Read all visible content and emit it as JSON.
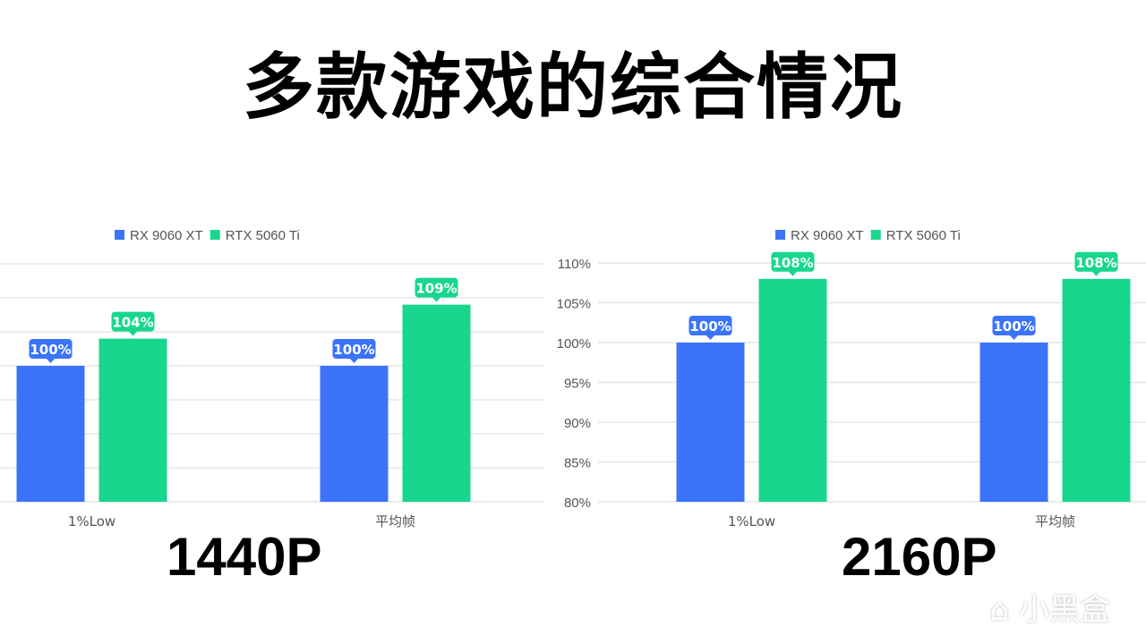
{
  "title": "多款游戏的综合情况",
  "watermark": "小黑盒",
  "colors": {
    "rx": "#3b74fb",
    "rtx": "#19d68f"
  },
  "chart_data": [
    {
      "type": "bar",
      "caption": "1440P",
      "categories": [
        "1%Low",
        "平均帧"
      ],
      "series": [
        {
          "name": "RX 9060 XT",
          "values": [
            100,
            100
          ]
        },
        {
          "name": "RTX 5060 Ti",
          "values": [
            104,
            109
          ]
        }
      ],
      "ylim": [
        80,
        115
      ],
      "yticks": [],
      "legend": "top",
      "grid": true
    },
    {
      "type": "bar",
      "caption": "2160P",
      "categories": [
        "1%Low",
        "平均帧"
      ],
      "series": [
        {
          "name": "RX 9060 XT",
          "values": [
            100,
            100
          ]
        },
        {
          "name": "RTX 5060 Ti",
          "values": [
            108,
            108
          ]
        }
      ],
      "ylim": [
        80,
        110
      ],
      "yticks": [
        "80%",
        "85%",
        "90%",
        "95%",
        "100%",
        "105%",
        "110%"
      ],
      "legend": "top",
      "grid": true
    }
  ]
}
